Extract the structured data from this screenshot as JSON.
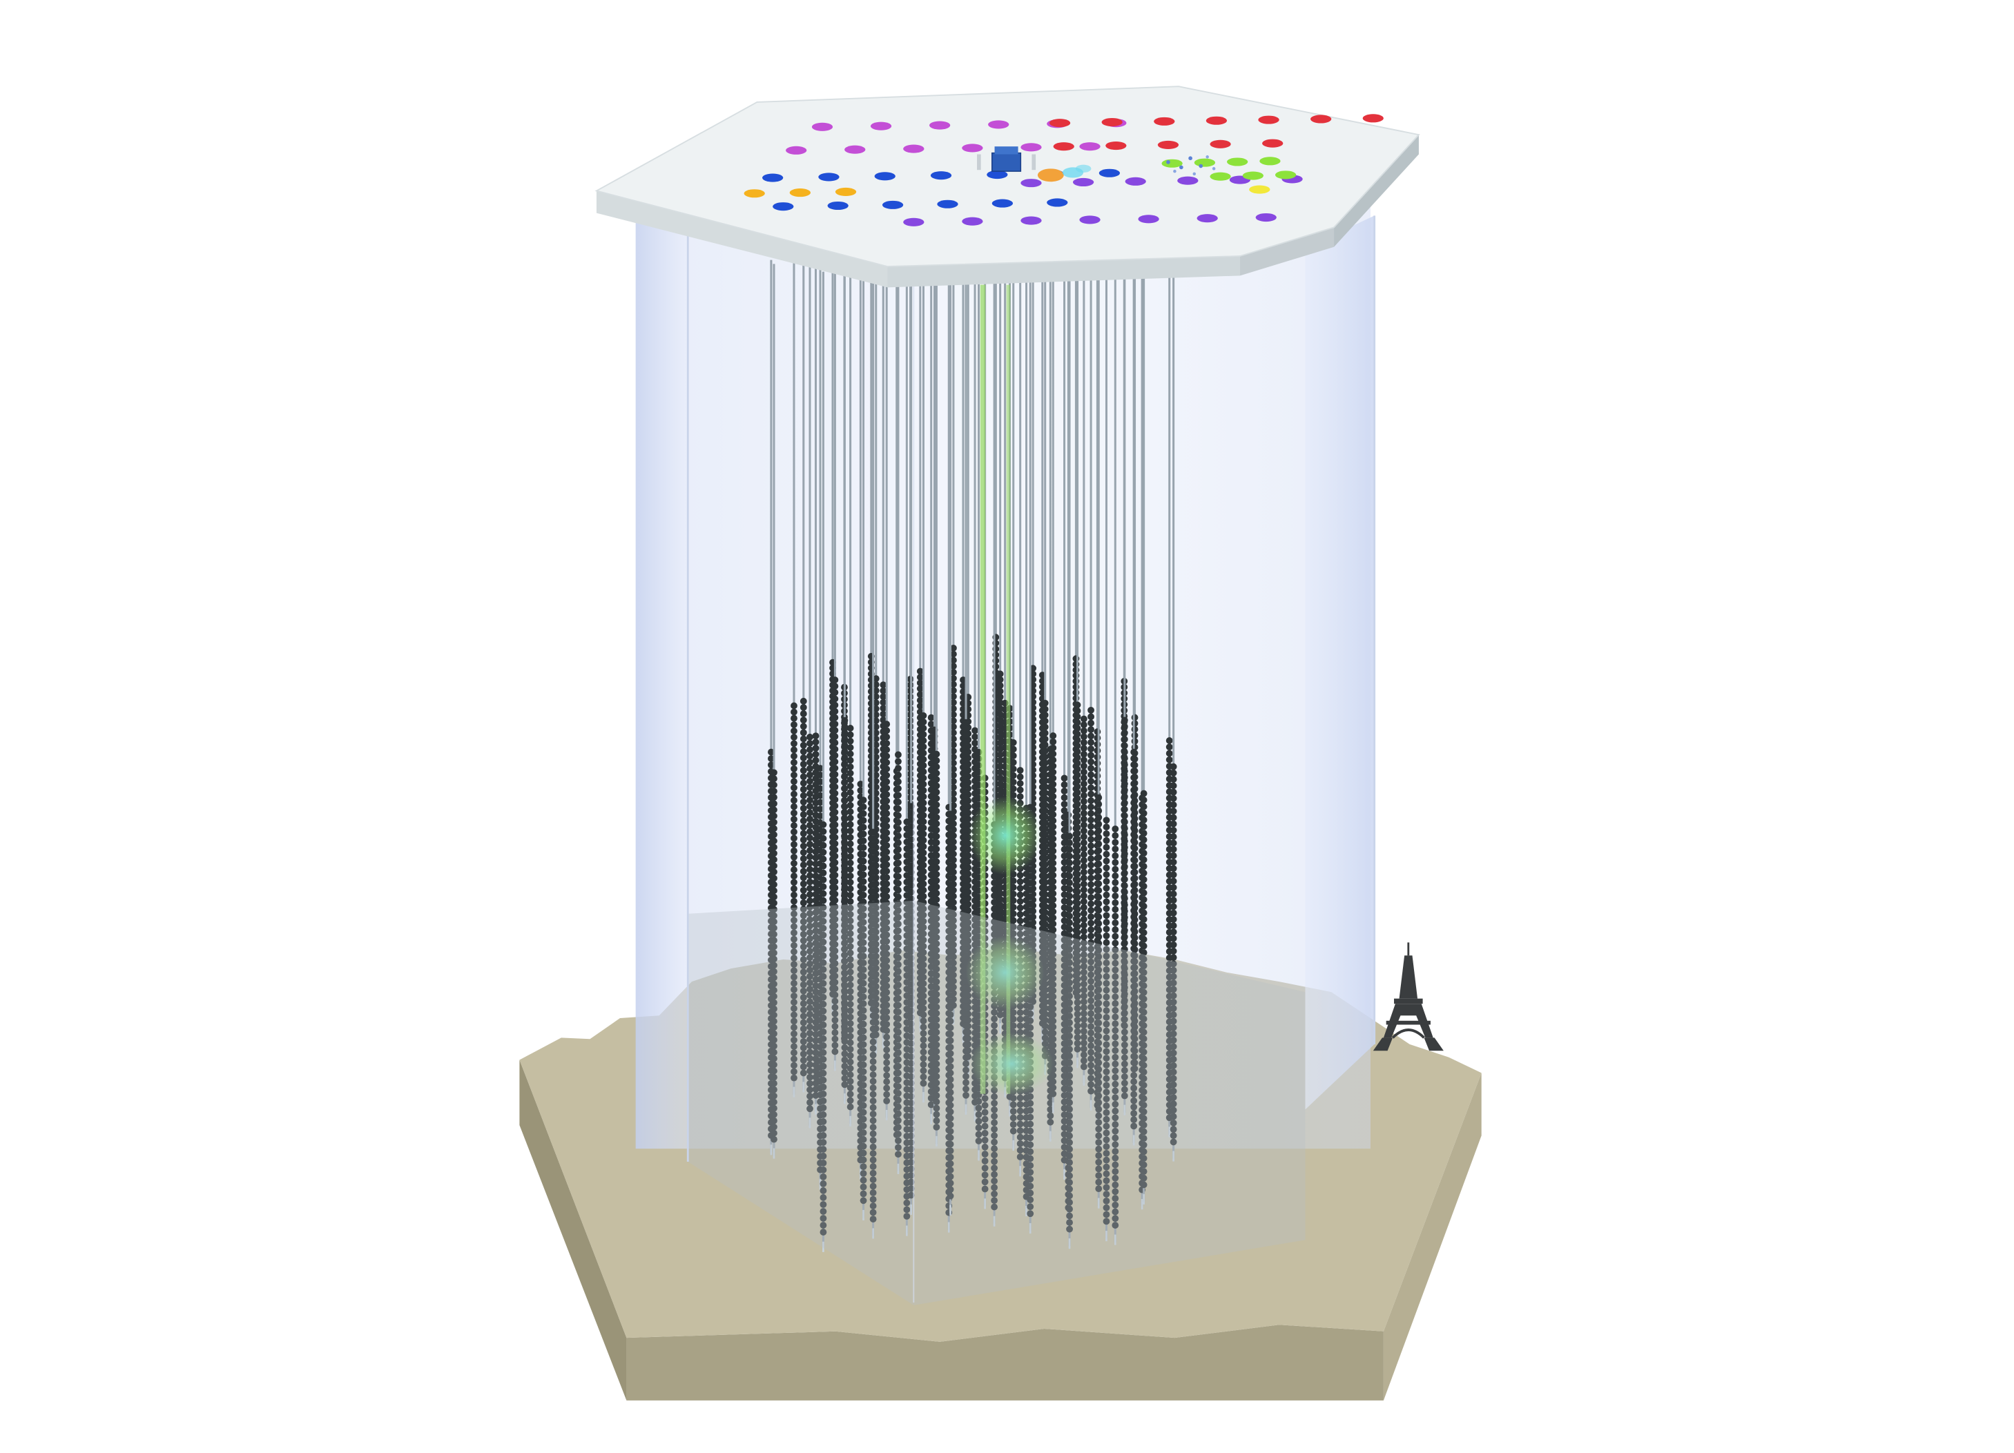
{
  "diagram": {
    "colors": {
      "background": "#ffffff",
      "bedrock_top": "#c5bea2",
      "bedrock_side_front": "#a8a286",
      "bedrock_side_dark": "#9a9478",
      "bedrock_front_face": "#b6af93",
      "ice_volume": "#c4d4f2",
      "ice_volume_edge": "#9fb1d6",
      "deck_top": "#eef2f3",
      "deck_side": "#d5dcde",
      "deck_edge": "#b8c2c6",
      "cable": "#98a4ae",
      "sensor": "#2f3538",
      "sensor_highlight": "#5a6266",
      "green_beam": "#9ad96a",
      "cyan_glow": "#7ff2d6",
      "tower": "#3a3d3f",
      "hub": "#2e5fb8"
    },
    "layout_counts": {
      "strings": 86,
      "sensors_per_string_approx": 60
    },
    "surface_marker_rows": [
      {
        "color": "#c34fd6",
        "count": 6
      },
      {
        "color": "#e3323c",
        "count": 7
      },
      {
        "color": "#c34fd6",
        "count": 6
      },
      {
        "color": "#e3323c",
        "count": 5
      },
      {
        "color": "#8de23b",
        "count": 4
      },
      {
        "color": "#1f4fd6",
        "count": 7
      },
      {
        "color": "#8748e0",
        "count": 6
      },
      {
        "color": "#8de23b",
        "count": 3
      },
      {
        "color": "#f5b21e",
        "count": 3
      },
      {
        "color": "#1f4fd6",
        "count": 6
      },
      {
        "color": "#8748e0",
        "count": 7
      },
      {
        "color": "#f2e83a",
        "count": 1
      }
    ],
    "icons": {
      "landmark": "eiffel-tower-icon",
      "hub": "lab-building-icon"
    }
  }
}
